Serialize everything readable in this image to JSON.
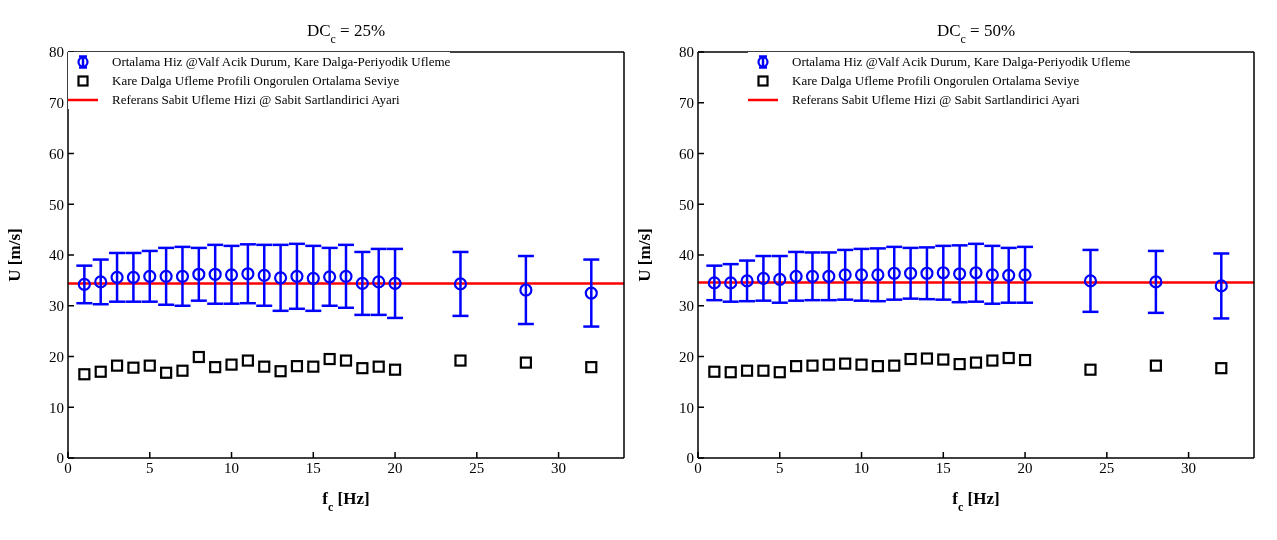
{
  "chart_data": [
    {
      "type": "scatter",
      "title": "DC$_{c}$ = 25%",
      "xlabel": "f$_{c}$ [Hz]",
      "ylabel": "U [m/s]",
      "xlim": [
        0,
        34
      ],
      "xticks": [
        0,
        5,
        10,
        15,
        20,
        25,
        30
      ],
      "ylim": [
        0,
        80
      ],
      "yticks": [
        0,
        10,
        20,
        30,
        40,
        50,
        60,
        70,
        80
      ],
      "grid": false,
      "legend": "top left",
      "series": [
        {
          "name": "Ortalama Hiz @Valf Acik Durum, Kare Dalga-Periyodik Ufleme",
          "color": "#0000ff",
          "marker": "circle",
          "x": [
            1,
            2,
            3,
            4,
            5,
            6,
            7,
            8,
            9,
            10,
            11,
            12,
            13,
            14,
            15,
            16,
            17,
            18,
            19,
            20,
            24,
            28,
            32
          ],
          "values": [
            34.2,
            34.7,
            35.6,
            35.6,
            35.8,
            35.8,
            35.8,
            36.2,
            36.2,
            36.1,
            36.3,
            36.0,
            35.5,
            35.8,
            35.4,
            35.7,
            35.8,
            34.4,
            34.7,
            34.4,
            34.3,
            33.1,
            32.5
          ],
          "errors": [
            3.7,
            4.4,
            4.8,
            4.8,
            5.0,
            5.6,
            5.8,
            5.2,
            5.8,
            5.7,
            5.8,
            6.0,
            6.5,
            6.4,
            6.4,
            5.7,
            6.2,
            6.2,
            6.5,
            6.8,
            6.3,
            6.7,
            6.6
          ]
        },
        {
          "name": "Kare Dalga Ufleme Profili Ongorulen Ortalama Seviye",
          "color": "#000000",
          "marker": "square",
          "x": [
            1,
            2,
            3,
            4,
            5,
            6,
            7,
            8,
            9,
            10,
            11,
            12,
            13,
            14,
            15,
            16,
            17,
            18,
            19,
            20,
            24,
            28,
            32
          ],
          "values": [
            16.5,
            17.0,
            18.2,
            17.8,
            18.2,
            16.8,
            17.2,
            19.9,
            17.9,
            18.4,
            19.2,
            18.0,
            17.1,
            18.1,
            18.0,
            19.5,
            19.2,
            17.7,
            18.0,
            17.4,
            19.2,
            18.8,
            17.9
          ]
        }
      ],
      "ref_lines": [
        {
          "axis": "y",
          "value": 34.4,
          "label": "Referans Sabit Ufleme Hizi @ Sabit Sartlandirici Ayari",
          "color": "#ff0000",
          "line_style": "solid"
        }
      ]
    },
    {
      "type": "scatter",
      "title": "DC$_{c}$ = 50%",
      "xlabel": "f$_{c}$ [Hz]",
      "ylabel": "U [m/s]",
      "xlim": [
        0,
        34
      ],
      "xticks": [
        0,
        5,
        10,
        15,
        20,
        25,
        30
      ],
      "ylim": [
        0,
        80
      ],
      "yticks": [
        0,
        10,
        20,
        30,
        40,
        50,
        60,
        70,
        80
      ],
      "grid": false,
      "legend": "top",
      "series": [
        {
          "name": "Ortalama Hiz @Valf Acik Durum, Kare Dalga-Periyodik Ufleme",
          "color": "#0000ff",
          "marker": "circle",
          "x": [
            1,
            2,
            3,
            4,
            5,
            6,
            7,
            8,
            9,
            10,
            11,
            12,
            13,
            14,
            15,
            16,
            17,
            18,
            19,
            20,
            24,
            28,
            32
          ],
          "values": [
            34.5,
            34.5,
            34.9,
            35.4,
            35.2,
            35.8,
            35.8,
            35.8,
            36.1,
            36.1,
            36.1,
            36.4,
            36.4,
            36.4,
            36.5,
            36.3,
            36.5,
            36.1,
            36.0,
            36.1,
            34.9,
            34.7,
            33.9
          ],
          "errors": [
            3.4,
            3.7,
            4.0,
            4.4,
            4.6,
            4.8,
            4.7,
            4.7,
            4.9,
            5.1,
            5.2,
            5.2,
            5.0,
            5.1,
            5.3,
            5.6,
            5.7,
            5.7,
            5.4,
            5.5,
            6.1,
            6.1,
            6.4
          ]
        },
        {
          "name": "Kare Dalga Ufleme Profili Ongorulen Ortalama Seviye",
          "color": "#000000",
          "marker": "square",
          "x": [
            1,
            2,
            3,
            4,
            5,
            6,
            7,
            8,
            9,
            10,
            11,
            12,
            13,
            14,
            15,
            16,
            17,
            18,
            19,
            20,
            24,
            28,
            32
          ],
          "values": [
            17.0,
            16.9,
            17.2,
            17.2,
            16.9,
            18.1,
            18.2,
            18.4,
            18.6,
            18.4,
            18.1,
            18.2,
            19.5,
            19.6,
            19.4,
            18.5,
            18.8,
            19.2,
            19.7,
            19.3,
            17.4,
            18.2,
            17.7
          ]
        }
      ],
      "ref_lines": [
        {
          "axis": "y",
          "value": 34.6,
          "label": "Referans Sabit Ufleme Hizi @ Sabit Sartlandirici Ayari",
          "color": "#ff0000",
          "line_style": "solid"
        }
      ]
    }
  ]
}
